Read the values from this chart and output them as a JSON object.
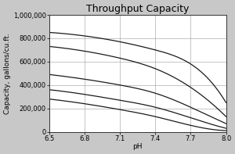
{
  "title": "Throughput Capacity",
  "xlabel": "pH",
  "ylabel": "Capacity, gallons/cu.ft.",
  "x_start": 6.5,
  "x_end": 8.0,
  "xticks": [
    6.5,
    6.8,
    7.1,
    7.4,
    7.7,
    8.0
  ],
  "ylim": [
    0,
    1000000
  ],
  "yticks": [
    0,
    200000,
    400000,
    600000,
    800000,
    1000000
  ],
  "curves": [
    [
      850000,
      820000,
      770000,
      700000,
      580000,
      250000
    ],
    [
      730000,
      690000,
      630000,
      540000,
      380000,
      130000
    ],
    [
      490000,
      450000,
      400000,
      330000,
      210000,
      70000
    ],
    [
      360000,
      320000,
      270000,
      210000,
      120000,
      30000
    ],
    [
      280000,
      240000,
      190000,
      130000,
      55000,
      10000
    ]
  ],
  "line_color": "#1a1a1a",
  "line_width": 0.9,
  "bg_color": "#c8c8c8",
  "plot_bg_color": "#ffffff",
  "grid_color": "#999999",
  "title_fontsize": 9,
  "label_fontsize": 6.5,
  "tick_fontsize": 6.0
}
